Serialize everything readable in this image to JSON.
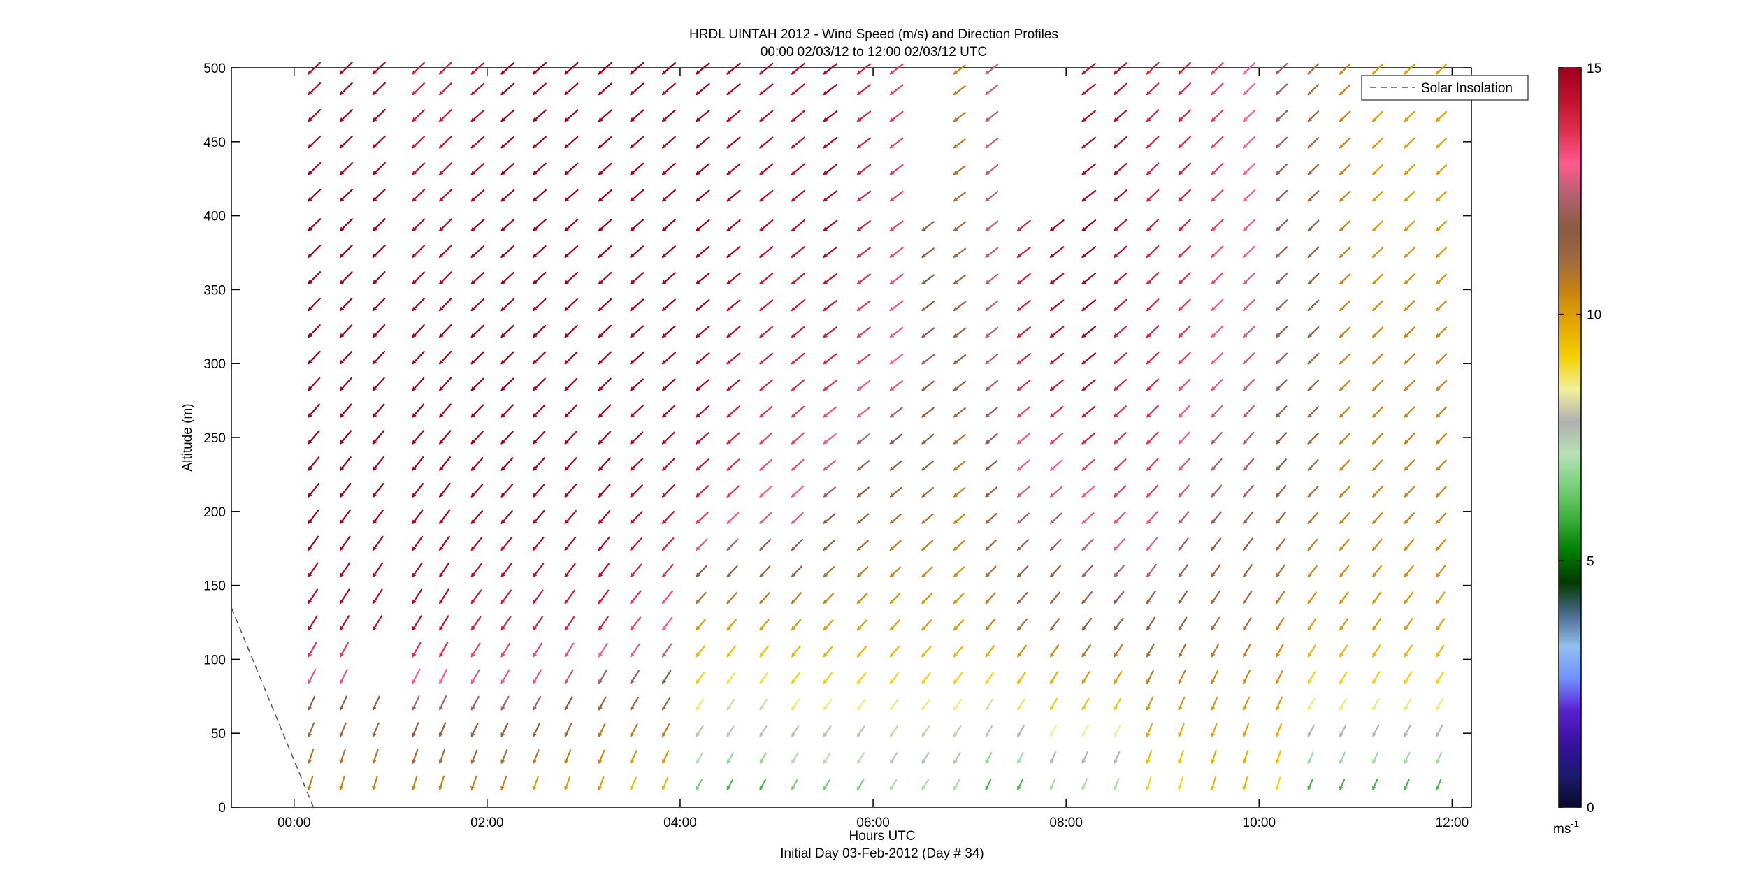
{
  "chart_data": {
    "type": "quiver",
    "title": "HRDL UINTAH 2012 - Wind Speed (m/s) and Direction Profiles",
    "subtitle": "00:00 02/03/12 to 12:00 02/03/12  UTC",
    "xlabel": "Hours UTC",
    "xlabel2": "Initial Day 03-Feb-2012 (Day # 34)",
    "ylabel": "Altitude (m)",
    "xlim": [
      -0.65,
      12.2
    ],
    "ylim": [
      0,
      500
    ],
    "x_ticks": [
      0,
      2,
      4,
      6,
      8,
      10,
      12
    ],
    "x_tick_labels": [
      "00:00",
      "02:00",
      "04:00",
      "06:00",
      "08:00",
      "10:00",
      "12:00"
    ],
    "y_ticks": [
      0,
      50,
      100,
      150,
      200,
      250,
      300,
      350,
      400,
      450,
      500
    ],
    "y_tick_labels": [
      "0",
      "50",
      "100",
      "150",
      "200",
      "250",
      "300",
      "350",
      "400",
      "450",
      "500"
    ],
    "legend": {
      "entries": [
        "Solar Insolation"
      ],
      "position": "top-right"
    },
    "colorbar": {
      "min": 0,
      "max": 15,
      "ticks": [
        0,
        5,
        10,
        15
      ],
      "tick_labels": [
        "0",
        "5",
        "10",
        "15"
      ],
      "unit_base": "ms",
      "unit_exp": "-1",
      "colors": [
        "#0a0a2a",
        "#1a1a70",
        "#3a10a0",
        "#5a20d0",
        "#7090ff",
        "#90c0f0",
        "#4a6a8a",
        "#003a00",
        "#008000",
        "#3fb03f",
        "#7ad07a",
        "#b8e0b8",
        "#b0b0b0",
        "#f2f09a",
        "#f5d000",
        "#e6a800",
        "#c8860e",
        "#a06a40",
        "#8a5a40",
        "#b06070",
        "#ff5a90",
        "#e03050",
        "#c01030",
        "#a0001a"
      ]
    },
    "solar_insolation": {
      "x": [
        -0.65,
        0.2
      ],
      "y": [
        135,
        0
      ],
      "style": "dashed",
      "color": "#555555"
    },
    "profile_times": [
      0.15,
      0.48,
      0.82,
      1.23,
      1.51,
      1.84,
      2.15,
      2.48,
      2.81,
      3.16,
      3.49,
      3.82,
      4.17,
      4.49,
      4.83,
      5.16,
      5.49,
      5.84,
      6.18,
      6.51,
      6.84,
      7.17,
      7.5,
      7.84,
      8.17,
      8.5,
      8.84,
      9.17,
      9.51,
      9.84,
      10.18,
      10.51,
      10.84,
      11.18,
      11.51,
      11.84
    ],
    "altitudes": [
      12,
      30,
      48,
      66,
      84,
      102,
      120,
      138,
      156,
      174,
      192,
      210,
      228,
      246,
      264,
      282,
      300,
      318,
      336,
      354,
      372,
      390,
      410,
      428,
      446,
      464,
      482,
      496
    ],
    "profile_top": [
      496,
      496,
      496,
      496,
      496,
      496,
      496,
      496,
      496,
      496,
      496,
      496,
      496,
      496,
      496,
      496,
      496,
      496,
      496,
      392,
      496,
      496,
      392,
      392,
      496,
      496,
      496,
      496,
      496,
      496,
      496,
      496,
      496,
      496,
      496,
      496
    ],
    "profile_bottom": [
      12,
      12,
      12,
      12,
      12,
      12,
      12,
      12,
      12,
      12,
      12,
      12,
      12,
      12,
      12,
      12,
      12,
      12,
      12,
      12,
      12,
      12,
      12,
      12,
      12,
      12,
      12,
      12,
      12,
      12,
      12,
      12,
      12,
      12,
      12,
      12
    ],
    "gap_profile_index": 2,
    "gap_altitudes": [
      84,
      102
    ],
    "speed_grid_altitudes": [
      12,
      60,
      120,
      200,
      300,
      400,
      496
    ],
    "speed_grid": [
      [
        10.5,
        11.5,
        14.5,
        15,
        15,
        15,
        14.5
      ],
      [
        10.5,
        11.5,
        14.5,
        15,
        15,
        15,
        14.8
      ],
      [
        10.5,
        11.5,
        14.5,
        15,
        15,
        15,
        14.8
      ],
      [
        10.5,
        12,
        14.5,
        15,
        15,
        14.5,
        14
      ],
      [
        10.5,
        12,
        14.5,
        15,
        15,
        14.5,
        14
      ],
      [
        10.5,
        12,
        14,
        14.8,
        15,
        14.8,
        14.3
      ],
      [
        10.5,
        12,
        14,
        14.8,
        15,
        15,
        15
      ],
      [
        10,
        12,
        14,
        14.8,
        15,
        15,
        15
      ],
      [
        10,
        11.5,
        14,
        14.8,
        15,
        15,
        15
      ],
      [
        10,
        11,
        14,
        14.8,
        15,
        15,
        15
      ],
      [
        9.5,
        11,
        13.5,
        14.5,
        15,
        15,
        15
      ],
      [
        9.5,
        11,
        13,
        14.5,
        15,
        15,
        15
      ],
      [
        6.5,
        8.5,
        10,
        14,
        14.8,
        15,
        15
      ],
      [
        6,
        8,
        10,
        13.5,
        14.5,
        14.8,
        14.8
      ],
      [
        6,
        8,
        10,
        13,
        14,
        14.5,
        14.5
      ],
      [
        6.5,
        8.5,
        10,
        13,
        14,
        14.5,
        14.5
      ],
      [
        6.5,
        8.5,
        10,
        12,
        14,
        14.8,
        14.8
      ],
      [
        6.5,
        8.5,
        10,
        11.5,
        13.5,
        14,
        14
      ],
      [
        7,
        8.5,
        10,
        11,
        13,
        13.5,
        13.5
      ],
      [
        7,
        8.5,
        10,
        11,
        12,
        11.5,
        11
      ],
      [
        7,
        8.5,
        10,
        10.5,
        11.5,
        11,
        10.5
      ],
      [
        6,
        8,
        10.5,
        11.5,
        12.5,
        12.5,
        12.5
      ],
      [
        6,
        8.5,
        11,
        12.5,
        14,
        14,
        14
      ],
      [
        7,
        9,
        11,
        12.5,
        14.5,
        15,
        14.8
      ],
      [
        7,
        9,
        11.5,
        13,
        15,
        15,
        14.5
      ],
      [
        7,
        9,
        11.5,
        13.5,
        14,
        14.5,
        14.5
      ],
      [
        9,
        10,
        11.5,
        13.5,
        14,
        14,
        14
      ],
      [
        9,
        10,
        11.5,
        12.5,
        13.5,
        14,
        14
      ],
      [
        9.5,
        10,
        11,
        12,
        13,
        13.5,
        13.5
      ],
      [
        9.5,
        10,
        11,
        12,
        12.5,
        13,
        13
      ],
      [
        9,
        10,
        10.5,
        11.5,
        12,
        12,
        12
      ],
      [
        6,
        8.5,
        10,
        11,
        11.5,
        11.5,
        11
      ],
      [
        6,
        8.5,
        10,
        10.5,
        10.5,
        10.5,
        10.5
      ],
      [
        6,
        8.5,
        10,
        10.5,
        10.5,
        10,
        10
      ],
      [
        6,
        8.5,
        10,
        10.5,
        10.5,
        10,
        10
      ],
      [
        6,
        8.5,
        10,
        10.5,
        10.5,
        10,
        10
      ]
    ],
    "direction_grid": [
      [
        0.3,
        0.42,
        0.55,
        0.65,
        0.75,
        0.8,
        0.8
      ],
      [
        0.3,
        0.42,
        0.55,
        0.65,
        0.75,
        0.8,
        0.8
      ],
      [
        0.3,
        0.42,
        0.55,
        0.65,
        0.75,
        0.8,
        0.8
      ],
      [
        0.3,
        0.42,
        0.55,
        0.65,
        0.75,
        0.8,
        0.8
      ],
      [
        0.3,
        0.42,
        0.55,
        0.65,
        0.75,
        0.8,
        0.8
      ],
      [
        0.35,
        0.48,
        0.6,
        0.72,
        0.8,
        0.85,
        0.85
      ],
      [
        0.35,
        0.48,
        0.6,
        0.72,
        0.8,
        0.85,
        0.85
      ],
      [
        0.35,
        0.48,
        0.6,
        0.72,
        0.8,
        0.85,
        0.85
      ],
      [
        0.35,
        0.48,
        0.6,
        0.72,
        0.8,
        0.85,
        0.85
      ],
      [
        0.35,
        0.48,
        0.6,
        0.72,
        0.8,
        0.85,
        0.85
      ],
      [
        0.4,
        0.52,
        0.65,
        0.78,
        0.85,
        0.85,
        0.85
      ],
      [
        0.4,
        0.52,
        0.65,
        0.78,
        0.85,
        0.85,
        0.85
      ],
      [
        0.5,
        0.58,
        0.7,
        0.82,
        0.88,
        0.88,
        0.88
      ],
      [
        0.5,
        0.58,
        0.7,
        0.82,
        0.88,
        0.88,
        0.88
      ],
      [
        0.5,
        0.58,
        0.7,
        0.82,
        0.88,
        0.88,
        0.88
      ],
      [
        0.5,
        0.58,
        0.7,
        0.82,
        0.88,
        0.88,
        0.88
      ],
      [
        0.55,
        0.62,
        0.75,
        0.88,
        0.92,
        0.92,
        0.92
      ],
      [
        0.55,
        0.62,
        0.75,
        0.88,
        0.92,
        0.92,
        0.92
      ],
      [
        0.55,
        0.62,
        0.75,
        0.88,
        0.92,
        0.92,
        0.92
      ],
      [
        0.55,
        0.62,
        0.75,
        0.88,
        0.92,
        0.92,
        0.92
      ],
      [
        0.5,
        0.6,
        0.75,
        0.88,
        0.92,
        0.92,
        0.92
      ],
      [
        0.45,
        0.55,
        0.7,
        0.85,
        0.9,
        0.9,
        0.9
      ],
      [
        0.45,
        0.55,
        0.7,
        0.85,
        0.9,
        0.9,
        0.9
      ],
      [
        0.4,
        0.5,
        0.65,
        0.85,
        0.9,
        0.9,
        0.9
      ],
      [
        0.4,
        0.5,
        0.65,
        0.85,
        0.9,
        0.9,
        0.9
      ],
      [
        0.4,
        0.5,
        0.65,
        0.8,
        0.85,
        0.85,
        0.85
      ],
      [
        0.3,
        0.4,
        0.55,
        0.75,
        0.8,
        0.8,
        0.8
      ],
      [
        0.3,
        0.4,
        0.55,
        0.72,
        0.8,
        0.8,
        0.8
      ],
      [
        0.3,
        0.4,
        0.55,
        0.7,
        0.8,
        0.8,
        0.8
      ],
      [
        0.3,
        0.4,
        0.55,
        0.7,
        0.8,
        0.8,
        0.8
      ],
      [
        0.3,
        0.4,
        0.55,
        0.7,
        0.8,
        0.8,
        0.8
      ],
      [
        0.4,
        0.5,
        0.6,
        0.75,
        0.8,
        0.8,
        0.8
      ],
      [
        0.4,
        0.5,
        0.6,
        0.75,
        0.8,
        0.8,
        0.8
      ],
      [
        0.4,
        0.5,
        0.6,
        0.75,
        0.8,
        0.8,
        0.8
      ],
      [
        0.4,
        0.5,
        0.6,
        0.75,
        0.8,
        0.8,
        0.8
      ],
      [
        0.4,
        0.5,
        0.6,
        0.75,
        0.8,
        0.8,
        0.8
      ]
    ]
  }
}
